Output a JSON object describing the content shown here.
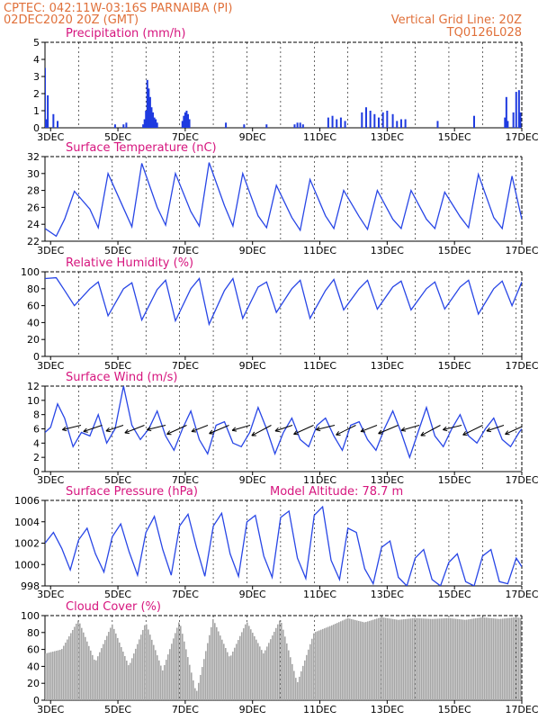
{
  "header": {
    "line1_left": "CPTEC:   042:11W-03:16S   PARNAIBA (PI)",
    "line2_left": "02DEC2020 20Z (GMT)",
    "line2_right": "Vertical Grid Line: 20Z",
    "line3_right": "TQ0126L028"
  },
  "colors": {
    "header": "#e0703a",
    "title": "#d6157e",
    "line": "#2846e6",
    "bar": "#1f3be0",
    "cloud": "#a6a6a6"
  },
  "chart_data": [
    {
      "type": "bar",
      "title": "Precipitation (mm/h)",
      "ylim": [
        0,
        5
      ],
      "yticks": [
        "0",
        "1",
        "2",
        "3",
        "4",
        "5"
      ],
      "xticks": [
        "3DEC",
        "5DEC",
        "7DEC",
        "9DEC",
        "11DEC",
        "13DEC",
        "15DEC",
        "17DEC"
      ],
      "x_start": "02DEC2020 20Z",
      "x_end": "17DEC2020 00Z",
      "x": [
        "02DEC 20Z",
        "02DEC 21Z",
        "02DEC 22Z",
        "03DEC 02Z",
        "03DEC 05Z",
        "04DEC 22Z",
        "05DEC 04Z",
        "05DEC 06Z",
        "05DEC 18Z",
        "05DEC 19Z",
        "05DEC 20Z",
        "05DEC 21Z",
        "05DEC 22Z",
        "05DEC 23Z",
        "06DEC 00Z",
        "06DEC 01Z",
        "06DEC 02Z",
        "06DEC 03Z",
        "06DEC 04Z",
        "06DEC 22Z",
        "06DEC 23Z",
        "07DEC 00Z",
        "07DEC 01Z",
        "07DEC 02Z",
        "07DEC 03Z",
        "08DEC 05Z",
        "08DEC 18Z",
        "09DEC 10Z",
        "10DEC 06Z",
        "10DEC 08Z",
        "10DEC 10Z",
        "10DEC 12Z",
        "11DEC 06Z",
        "11DEC 09Z",
        "11DEC 12Z",
        "11DEC 15Z",
        "11DEC 18Z",
        "12DEC 06Z",
        "12DEC 09Z",
        "12DEC 12Z",
        "12DEC 15Z",
        "12DEC 18Z",
        "12DEC 21Z",
        "13DEC 00Z",
        "13DEC 04Z",
        "13DEC 07Z",
        "13DEC 10Z",
        "13DEC 13Z",
        "14DEC 12Z",
        "15DEC 14Z",
        "16DEC 12Z",
        "16DEC 13Z",
        "16DEC 14Z",
        "16DEC 18Z",
        "16DEC 20Z",
        "16DEC 22Z",
        "16DEC 23Z"
      ],
      "values": [
        3.5,
        0.5,
        1.9,
        0.8,
        0.4,
        0.2,
        0.2,
        0.3,
        0.2,
        0.5,
        1.0,
        2.8,
        2.3,
        1.8,
        1.2,
        0.9,
        0.6,
        0.5,
        0.3,
        0.4,
        0.7,
        0.9,
        1.0,
        0.8,
        0.5,
        0.3,
        0.2,
        0.2,
        0.2,
        0.3,
        0.3,
        0.2,
        0.6,
        0.7,
        0.5,
        0.6,
        0.4,
        0.9,
        1.2,
        1.0,
        0.8,
        0.6,
        0.9,
        1.0,
        0.8,
        0.4,
        0.5,
        0.5,
        0.4,
        0.7,
        0.6,
        1.8,
        0.4,
        0.9,
        2.1,
        2.2,
        0.9
      ]
    },
    {
      "type": "line",
      "title": "Surface Temperature (nC)",
      "ylim": [
        22,
        32
      ],
      "yticks": [
        "22",
        "24",
        "26",
        "28",
        "30",
        "32"
      ],
      "xticks": [
        "3DEC",
        "5DEC",
        "7DEC",
        "9DEC",
        "11DEC",
        "13DEC",
        "15DEC",
        "17DEC"
      ],
      "x": [
        "02DEC 20Z",
        "03DEC 04Z",
        "03DEC 10Z",
        "03DEC 17Z",
        "04DEC 04Z",
        "04DEC 10Z",
        "04DEC 17Z",
        "05DEC 04Z",
        "05DEC 10Z",
        "05DEC 17Z",
        "06DEC 04Z",
        "06DEC 10Z",
        "06DEC 17Z",
        "07DEC 04Z",
        "07DEC 10Z",
        "07DEC 17Z",
        "08DEC 04Z",
        "08DEC 10Z",
        "08DEC 17Z",
        "09DEC 04Z",
        "09DEC 10Z",
        "09DEC 17Z",
        "10DEC 04Z",
        "10DEC 10Z",
        "10DEC 17Z",
        "11DEC 04Z",
        "11DEC 10Z",
        "11DEC 17Z",
        "12DEC 04Z",
        "12DEC 10Z",
        "12DEC 17Z",
        "13DEC 04Z",
        "13DEC 10Z",
        "13DEC 17Z",
        "14DEC 04Z",
        "14DEC 10Z",
        "14DEC 17Z",
        "15DEC 04Z",
        "15DEC 10Z",
        "15DEC 17Z",
        "16DEC 04Z",
        "16DEC 10Z",
        "16DEC 17Z",
        "17DEC 00Z"
      ],
      "values": [
        23.5,
        22.6,
        24.6,
        27.9,
        25.8,
        23.6,
        30.0,
        25.9,
        23.7,
        31.2,
        26.0,
        23.9,
        30.0,
        25.5,
        23.8,
        31.3,
        26.2,
        23.8,
        30.0,
        25.0,
        23.6,
        28.6,
        24.8,
        23.3,
        29.3,
        25.0,
        23.5,
        28.0,
        24.9,
        23.4,
        28.0,
        24.6,
        23.5,
        28.0,
        24.6,
        23.5,
        27.8,
        24.9,
        23.6,
        29.9,
        24.8,
        23.5,
        29.7,
        24.6
      ]
    },
    {
      "type": "line",
      "title": "Relative Humidity (%)",
      "ylim": [
        0,
        100
      ],
      "yticks": [
        "0",
        "20",
        "40",
        "60",
        "80",
        "100"
      ],
      "xticks": [
        "3DEC",
        "5DEC",
        "7DEC",
        "9DEC",
        "11DEC",
        "13DEC",
        "15DEC",
        "17DEC"
      ],
      "x": [
        "02DEC 20Z",
        "03DEC 04Z",
        "03DEC 10Z",
        "03DEC 17Z",
        "04DEC 04Z",
        "04DEC 10Z",
        "04DEC 17Z",
        "05DEC 04Z",
        "05DEC 10Z",
        "05DEC 17Z",
        "06DEC 04Z",
        "06DEC 10Z",
        "06DEC 17Z",
        "07DEC 04Z",
        "07DEC 10Z",
        "07DEC 17Z",
        "08DEC 04Z",
        "08DEC 10Z",
        "08DEC 17Z",
        "09DEC 04Z",
        "09DEC 10Z",
        "09DEC 17Z",
        "10DEC 04Z",
        "10DEC 10Z",
        "10DEC 17Z",
        "11DEC 04Z",
        "11DEC 10Z",
        "11DEC 17Z",
        "12DEC 04Z",
        "12DEC 10Z",
        "12DEC 17Z",
        "13DEC 04Z",
        "13DEC 10Z",
        "13DEC 17Z",
        "14DEC 04Z",
        "14DEC 10Z",
        "14DEC 17Z",
        "15DEC 04Z",
        "15DEC 10Z",
        "15DEC 17Z",
        "16DEC 04Z",
        "16DEC 10Z",
        "16DEC 17Z",
        "17DEC 00Z"
      ],
      "values": [
        92,
        93,
        78,
        60,
        80,
        88,
        48,
        80,
        87,
        43,
        79,
        90,
        42,
        80,
        92,
        38,
        78,
        92,
        45,
        82,
        88,
        52,
        80,
        90,
        45,
        78,
        91,
        55,
        80,
        90,
        56,
        82,
        89,
        55,
        80,
        88,
        56,
        82,
        90,
        50,
        80,
        89,
        60,
        88
      ]
    },
    {
      "type": "line",
      "title": "Surface Wind (m/s)",
      "ylim": [
        0,
        12
      ],
      "yticks": [
        "0",
        "2",
        "4",
        "6",
        "8",
        "10",
        "12"
      ],
      "xticks": [
        "3DEC",
        "5DEC",
        "7DEC",
        "9DEC",
        "11DEC",
        "13DEC",
        "15DEC",
        "17DEC"
      ],
      "x": [
        "02DEC 20Z",
        "03DEC 00Z",
        "03DEC 05Z",
        "03DEC 10Z",
        "03DEC 16Z",
        "03DEC 22Z",
        "04DEC 04Z",
        "04DEC 10Z",
        "04DEC 16Z",
        "04DEC 22Z",
        "05DEC 04Z",
        "05DEC 10Z",
        "05DEC 16Z",
        "05DEC 22Z",
        "06DEC 04Z",
        "06DEC 10Z",
        "06DEC 16Z",
        "06DEC 22Z",
        "07DEC 04Z",
        "07DEC 10Z",
        "07DEC 16Z",
        "07DEC 22Z",
        "08DEC 04Z",
        "08DEC 10Z",
        "08DEC 16Z",
        "08DEC 22Z",
        "09DEC 04Z",
        "09DEC 10Z",
        "09DEC 16Z",
        "09DEC 22Z",
        "10DEC 04Z",
        "10DEC 10Z",
        "10DEC 16Z",
        "10DEC 22Z",
        "11DEC 04Z",
        "11DEC 10Z",
        "11DEC 16Z",
        "11DEC 22Z",
        "12DEC 04Z",
        "12DEC 10Z",
        "12DEC 16Z",
        "12DEC 22Z",
        "13DEC 04Z",
        "13DEC 10Z",
        "13DEC 16Z",
        "13DEC 22Z",
        "14DEC 04Z",
        "14DEC 10Z",
        "14DEC 16Z",
        "14DEC 22Z",
        "15DEC 04Z",
        "15DEC 10Z",
        "15DEC 16Z",
        "15DEC 22Z",
        "16DEC 04Z",
        "16DEC 10Z",
        "16DEC 16Z",
        "16DEC 22Z",
        "17DEC 00Z"
      ],
      "values": [
        5.5,
        6.2,
        9.5,
        7.5,
        3.5,
        5.5,
        5.0,
        8.0,
        4.0,
        6.0,
        12.0,
        6.5,
        4.5,
        6.0,
        8.5,
        5.0,
        3.0,
        6.0,
        8.5,
        4.5,
        2.5,
        6.5,
        7.0,
        4.0,
        3.5,
        5.5,
        9.0,
        6.0,
        2.5,
        5.5,
        7.5,
        4.5,
        3.5,
        6.5,
        7.5,
        5.0,
        3.0,
        6.5,
        7.0,
        4.5,
        3.0,
        6.0,
        8.5,
        5.5,
        2.0,
        5.5,
        9.0,
        5.0,
        3.5,
        6.0,
        8.0,
        5.0,
        4.0,
        6.0,
        7.5,
        4.5,
        3.5,
        5.5,
        6.0
      ],
      "arrows_note": "wind direction vectors"
    },
    {
      "type": "line",
      "title": "Surface Pressure (hPa)",
      "annotation": "Model Altitude: 78.7 m",
      "ylim": [
        998,
        1006
      ],
      "yticks": [
        "998",
        "1000",
        "1002",
        "1004",
        "1006"
      ],
      "xticks": [
        "3DEC",
        "5DEC",
        "7DEC",
        "9DEC",
        "11DEC",
        "13DEC",
        "15DEC",
        "17DEC"
      ],
      "x": [
        "02DEC 20Z",
        "03DEC 02Z",
        "03DEC 08Z",
        "03DEC 14Z",
        "03DEC 20Z",
        "04DEC 02Z",
        "04DEC 08Z",
        "04DEC 14Z",
        "04DEC 20Z",
        "05DEC 02Z",
        "05DEC 08Z",
        "05DEC 14Z",
        "05DEC 20Z",
        "06DEC 02Z",
        "06DEC 08Z",
        "06DEC 14Z",
        "06DEC 20Z",
        "07DEC 02Z",
        "07DEC 08Z",
        "07DEC 14Z",
        "07DEC 20Z",
        "08DEC 02Z",
        "08DEC 08Z",
        "08DEC 14Z",
        "08DEC 20Z",
        "09DEC 02Z",
        "09DEC 08Z",
        "09DEC 14Z",
        "09DEC 20Z",
        "10DEC 02Z",
        "10DEC 08Z",
        "10DEC 14Z",
        "10DEC 20Z",
        "11DEC 02Z",
        "11DEC 08Z",
        "11DEC 14Z",
        "11DEC 20Z",
        "12DEC 02Z",
        "12DEC 08Z",
        "12DEC 14Z",
        "12DEC 20Z",
        "13DEC 02Z",
        "13DEC 08Z",
        "13DEC 14Z",
        "13DEC 20Z",
        "14DEC 02Z",
        "14DEC 08Z",
        "14DEC 14Z",
        "14DEC 20Z",
        "15DEC 02Z",
        "15DEC 08Z",
        "15DEC 14Z",
        "15DEC 20Z",
        "16DEC 02Z",
        "16DEC 08Z",
        "16DEC 14Z",
        "16DEC 20Z",
        "17DEC 00Z"
      ],
      "values": [
        1002.0,
        1003.0,
        1001.5,
        999.5,
        1002.3,
        1003.4,
        1001.0,
        999.3,
        1002.6,
        1003.8,
        1001.2,
        999.0,
        1003.0,
        1004.5,
        1001.4,
        999.0,
        1003.6,
        1004.7,
        1001.6,
        998.9,
        1003.6,
        1004.8,
        1001.0,
        998.9,
        1004.0,
        1004.6,
        1000.8,
        998.8,
        1004.4,
        1005.0,
        1000.6,
        998.7,
        1004.6,
        1005.4,
        1000.4,
        998.6,
        1003.4,
        1003.0,
        999.6,
        998.2,
        1001.6,
        1002.2,
        998.8,
        998.0,
        1000.6,
        1001.4,
        998.6,
        998.0,
        1000.2,
        1001.0,
        998.4,
        998.0,
        1000.8,
        1001.4,
        998.4,
        998.2,
        1000.6,
        999.8
      ]
    },
    {
      "type": "bar",
      "title": "Cloud Cover (%)",
      "ylim": [
        0,
        100
      ],
      "yticks": [
        "0",
        "20",
        "40",
        "60",
        "80",
        "100"
      ],
      "xticks": [
        "3DEC",
        "5DEC",
        "7DEC",
        "9DEC",
        "11DEC",
        "13DEC",
        "15DEC",
        "17DEC"
      ],
      "x": [
        "02DEC 20Z",
        "03DEC 08Z",
        "03DEC 20Z",
        "04DEC 08Z",
        "04DEC 20Z",
        "05DEC 08Z",
        "05DEC 20Z",
        "06DEC 08Z",
        "06DEC 20Z",
        "07DEC 08Z",
        "07DEC 20Z",
        "08DEC 08Z",
        "08DEC 20Z",
        "09DEC 08Z",
        "09DEC 20Z",
        "10DEC 08Z",
        "10DEC 20Z",
        "11DEC 08Z",
        "11DEC 20Z",
        "12DEC 08Z",
        "12DEC 20Z",
        "13DEC 08Z",
        "13DEC 20Z",
        "14DEC 08Z",
        "14DEC 20Z",
        "15DEC 08Z",
        "15DEC 20Z",
        "16DEC 08Z",
        "16DEC 20Z",
        "17DEC 00Z"
      ],
      "values": [
        55,
        60,
        95,
        45,
        90,
        40,
        92,
        35,
        94,
        8,
        96,
        50,
        93,
        55,
        96,
        20,
        80,
        88,
        97,
        92,
        98,
        95,
        97,
        96,
        97,
        95,
        98,
        96,
        98,
        97
      ]
    }
  ]
}
